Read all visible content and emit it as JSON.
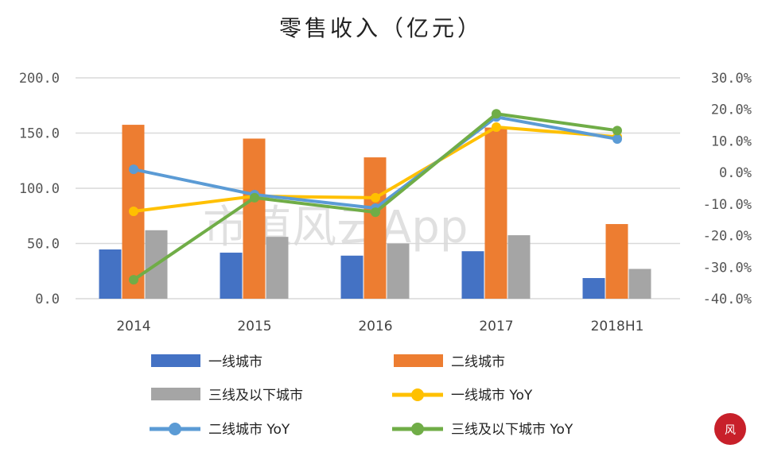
{
  "watermark": "市值风云App",
  "chart_data": {
    "type": "bar+line",
    "title": "零售收入（亿元）",
    "categories": [
      "2014",
      "2015",
      "2016",
      "2017",
      "2018H1"
    ],
    "y_left": {
      "ylim": [
        0,
        200
      ],
      "ticks": [
        "0.0",
        "50.0",
        "100.0",
        "150.0",
        "200.0"
      ]
    },
    "y_right": {
      "ylim": [
        -40,
        30
      ],
      "ticks": [
        "-40.0%",
        "-30.0%",
        "-20.0%",
        "-10.0%",
        "0.0%",
        "10.0%",
        "20.0%",
        "30.0%"
      ]
    },
    "grid": true,
    "legend_placement": "bottom",
    "bar_series": [
      {
        "name": "一线城市",
        "color": "#4472c4",
        "values": [
          44.6,
          41.7,
          39.0,
          43.0,
          18.7
        ]
      },
      {
        "name": "二线城市",
        "color": "#ed7d31",
        "values": [
          157.5,
          145.0,
          128.0,
          155.0,
          67.6
        ]
      },
      {
        "name": "三线及以下城市",
        "color": "#a5a5a5",
        "values": [
          62.0,
          56.0,
          50.0,
          57.5,
          27.0
        ]
      }
    ],
    "line_series": [
      {
        "name": "一线城市 YoY",
        "color": "#ffc000",
        "axis": "right",
        "values": [
          -12.3,
          -7.5,
          -8.0,
          14.4,
          11.3
        ]
      },
      {
        "name": "二线城市 YoY",
        "color": "#5b9bd5",
        "axis": "right",
        "values": [
          1.0,
          -7.0,
          -11.3,
          17.6,
          10.6
        ]
      },
      {
        "name": "三线及以下城市 YoY",
        "color": "#70ad47",
        "axis": "right",
        "values": [
          -34.0,
          -8.0,
          -12.6,
          18.6,
          13.3
        ]
      }
    ]
  }
}
